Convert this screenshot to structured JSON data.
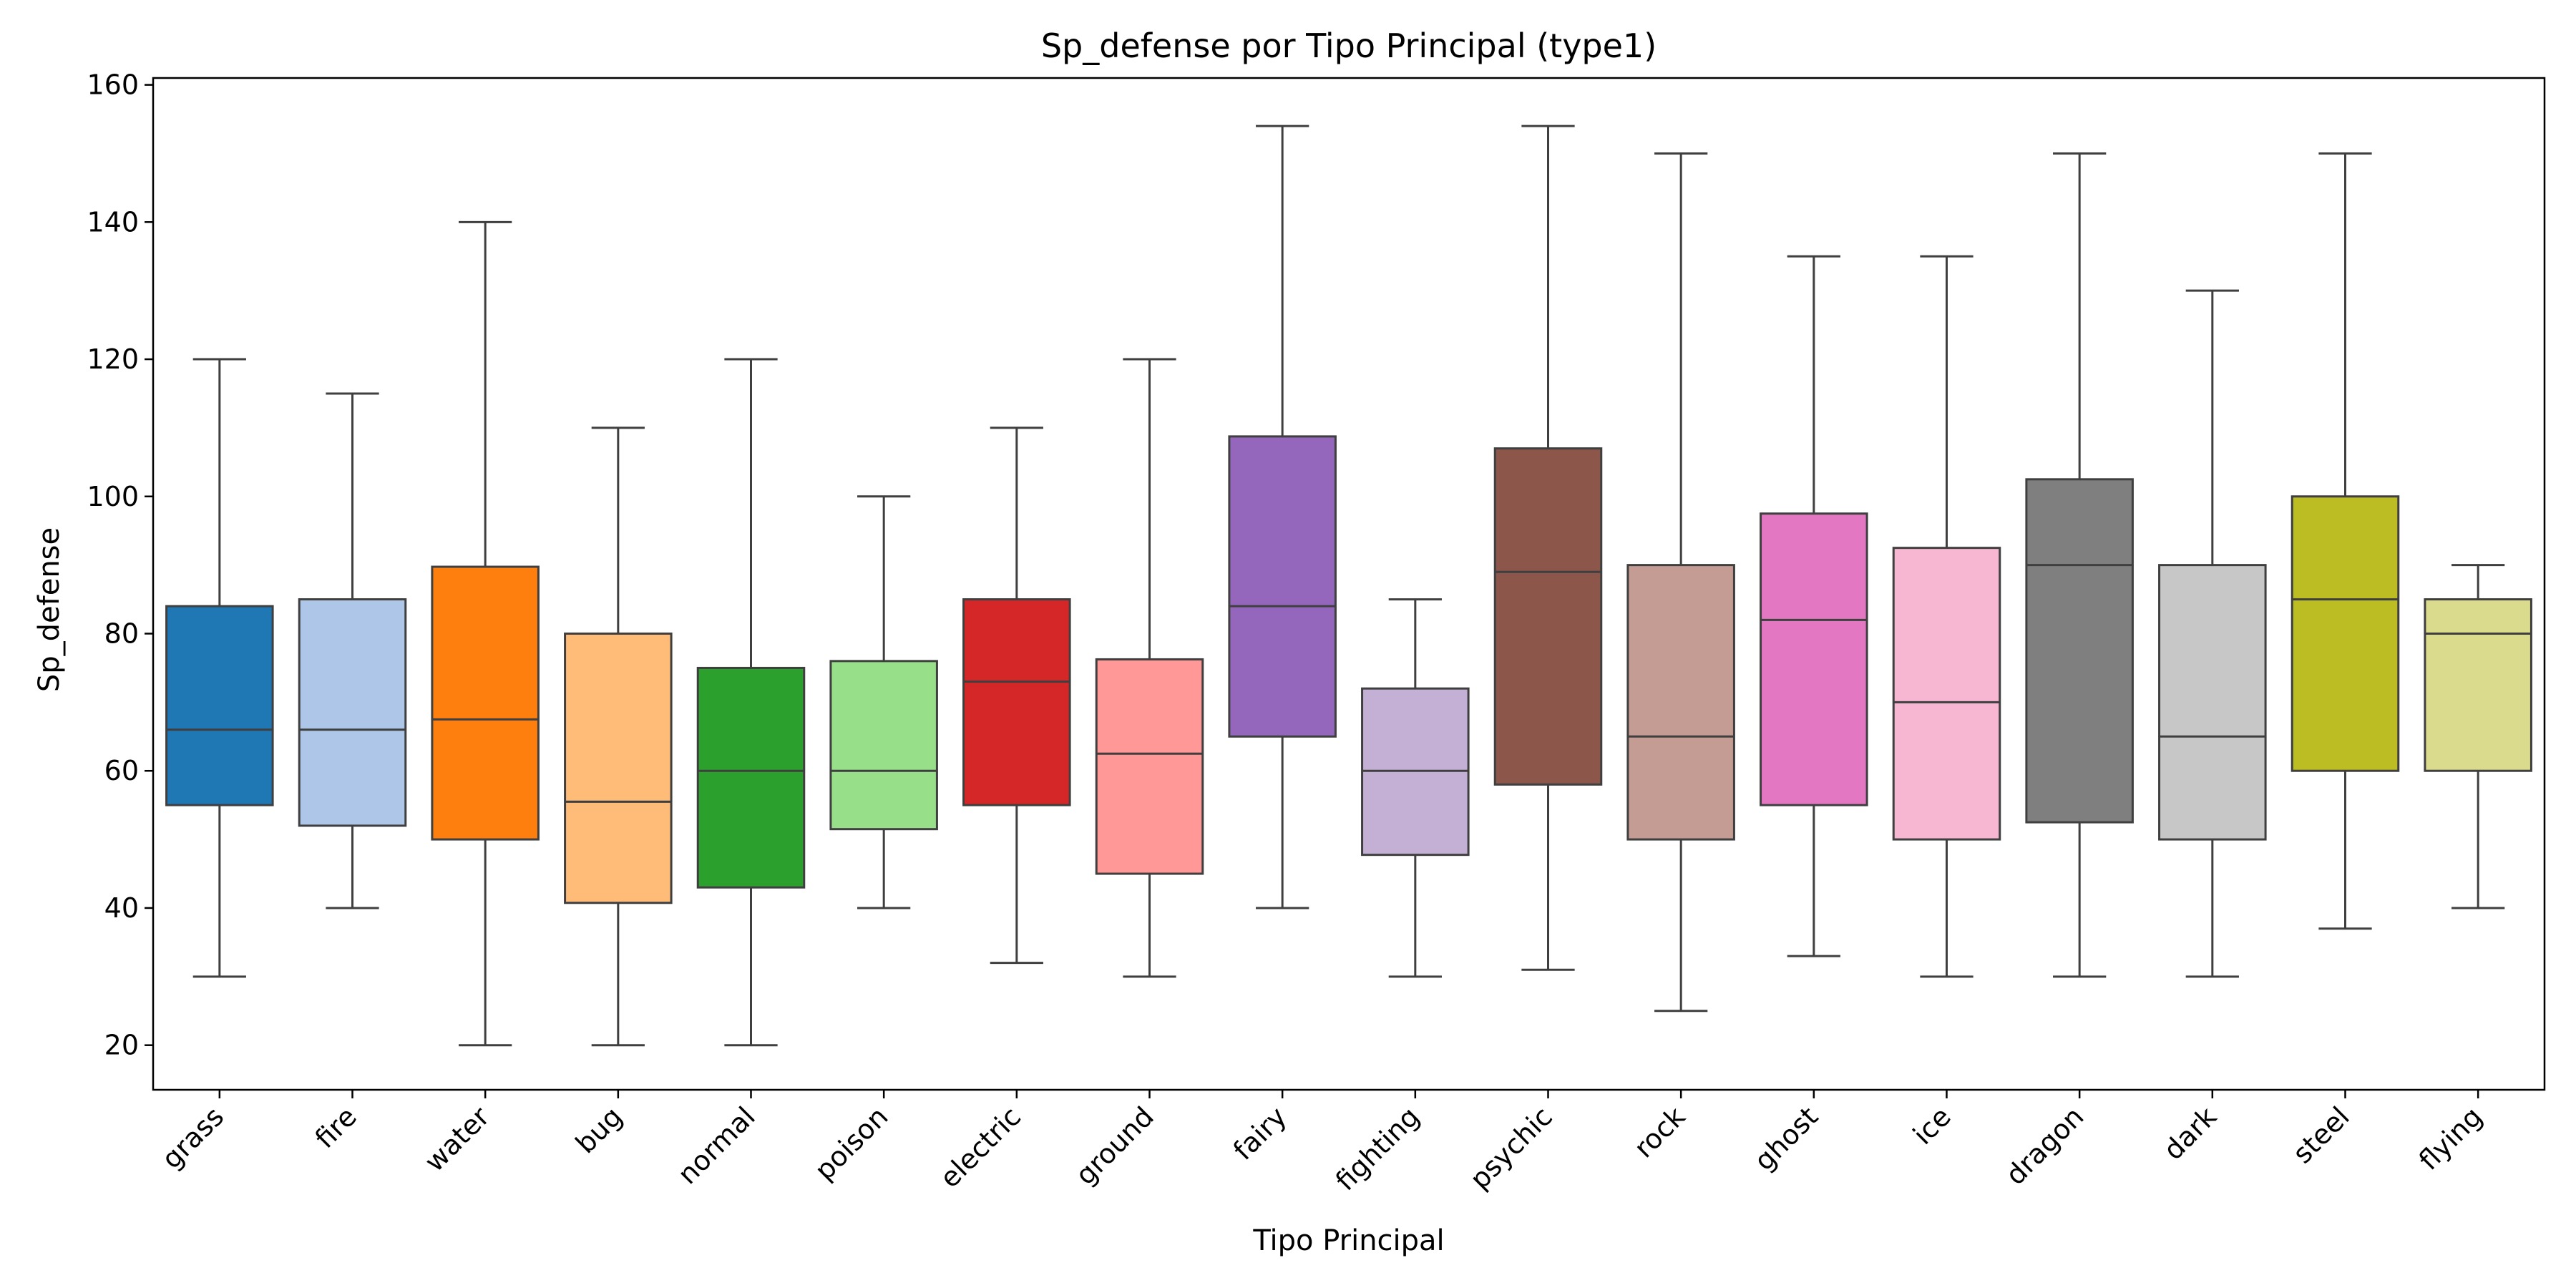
{
  "chart_data": {
    "type": "boxplot",
    "title": "Sp_defense por Tipo Principal (type1)",
    "xlabel": "Tipo Principal",
    "ylabel": "Sp_defense",
    "ylim": [
      13.5,
      161
    ],
    "yticks": [
      20,
      40,
      60,
      80,
      100,
      120,
      140,
      160
    ],
    "grid": false,
    "categories": [
      "grass",
      "fire",
      "water",
      "bug",
      "normal",
      "poison",
      "electric",
      "ground",
      "fairy",
      "fighting",
      "psychic",
      "rock",
      "ghost",
      "ice",
      "dragon",
      "dark",
      "steel",
      "flying"
    ],
    "boxes": [
      {
        "category": "grass",
        "whisker_low": 30,
        "q1": 55,
        "median": 66,
        "q3": 84,
        "whisker_high": 120,
        "color": "#1f77b4"
      },
      {
        "category": "fire",
        "whisker_low": 40,
        "q1": 52,
        "median": 66,
        "q3": 85,
        "whisker_high": 115,
        "color": "#aec7e8"
      },
      {
        "category": "water",
        "whisker_low": 20,
        "q1": 50,
        "median": 67.5,
        "q3": 89.75,
        "whisker_high": 140,
        "color": "#ff7f0e"
      },
      {
        "category": "bug",
        "whisker_low": 20,
        "q1": 40.75,
        "median": 55.5,
        "q3": 80,
        "whisker_high": 110,
        "color": "#ffbb78"
      },
      {
        "category": "normal",
        "whisker_low": 20,
        "q1": 43,
        "median": 60,
        "q3": 75,
        "whisker_high": 120,
        "color": "#2ca02c"
      },
      {
        "category": "poison",
        "whisker_low": 40,
        "q1": 51.5,
        "median": 60,
        "q3": 76,
        "whisker_high": 100,
        "color": "#98df8a"
      },
      {
        "category": "electric",
        "whisker_low": 32,
        "q1": 55,
        "median": 73,
        "q3": 85,
        "whisker_high": 110,
        "color": "#d62728"
      },
      {
        "category": "ground",
        "whisker_low": 30,
        "q1": 45,
        "median": 62.5,
        "q3": 76.25,
        "whisker_high": 120,
        "color": "#ff9896"
      },
      {
        "category": "fairy",
        "whisker_low": 40,
        "q1": 65,
        "median": 84,
        "q3": 108.75,
        "whisker_high": 154,
        "color": "#9467bd"
      },
      {
        "category": "fighting",
        "whisker_low": 30,
        "q1": 47.75,
        "median": 60,
        "q3": 72,
        "whisker_high": 85,
        "color": "#c5b0d5"
      },
      {
        "category": "psychic",
        "whisker_low": 31,
        "q1": 58,
        "median": 89,
        "q3": 107,
        "whisker_high": 154,
        "color": "#8c564b"
      },
      {
        "category": "rock",
        "whisker_low": 25,
        "q1": 50,
        "median": 65,
        "q3": 90,
        "whisker_high": 150,
        "color": "#c49c94"
      },
      {
        "category": "ghost",
        "whisker_low": 33,
        "q1": 55,
        "median": 82,
        "q3": 97.5,
        "whisker_high": 135,
        "color": "#e377c2"
      },
      {
        "category": "ice",
        "whisker_low": 30,
        "q1": 50,
        "median": 70,
        "q3": 92.5,
        "whisker_high": 135,
        "color": "#f7b6d2"
      },
      {
        "category": "dragon",
        "whisker_low": 30,
        "q1": 52.5,
        "median": 90,
        "q3": 102.5,
        "whisker_high": 150,
        "color": "#7f7f7f"
      },
      {
        "category": "dark",
        "whisker_low": 30,
        "q1": 50,
        "median": 65,
        "q3": 90,
        "whisker_high": 130,
        "color": "#c7c7c7"
      },
      {
        "category": "steel",
        "whisker_low": 37,
        "q1": 60,
        "median": 85,
        "q3": 100,
        "whisker_high": 150,
        "color": "#bcbd22"
      },
      {
        "category": "flying",
        "whisker_low": 40,
        "q1": 60,
        "median": 80,
        "q3": 85,
        "whisker_high": 90,
        "color": "#dbdb8d"
      }
    ]
  }
}
